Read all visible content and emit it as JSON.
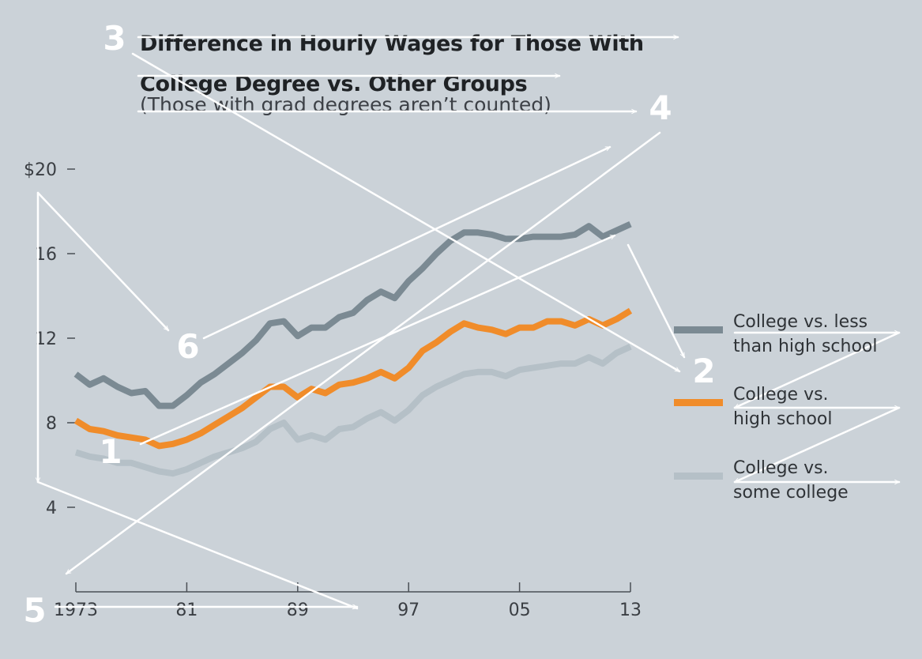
{
  "chart_data": {
    "type": "line",
    "title": "Difference in Hourly Wages for Those With College Degree vs. Other Groups",
    "title_lines": [
      "Difference in Hourly Wages for Those With",
      "College Degree vs. Other Groups"
    ],
    "subtitle": "(Those with grad degrees aren’t counted)",
    "ylim": [
      0,
      20
    ],
    "xlim": [
      1973,
      2013
    ],
    "y_ticks": [
      {
        "value": 20,
        "label": "$20"
      },
      {
        "value": 16,
        "label": "16"
      },
      {
        "value": 12,
        "label": "12"
      },
      {
        "value": 8,
        "label": "8"
      },
      {
        "value": 4,
        "label": "4"
      }
    ],
    "x_ticks": [
      {
        "value": 1973,
        "label": "1973"
      },
      {
        "value": 1981,
        "label": "81"
      },
      {
        "value": 1989,
        "label": "89"
      },
      {
        "value": 1997,
        "label": "97"
      },
      {
        "value": 2005,
        "label": "05"
      },
      {
        "value": 2013,
        "label": "13"
      }
    ],
    "x": [
      1973,
      1974,
      1975,
      1976,
      1977,
      1978,
      1979,
      1980,
      1981,
      1982,
      1983,
      1984,
      1985,
      1986,
      1987,
      1988,
      1989,
      1990,
      1991,
      1992,
      1993,
      1994,
      1995,
      1996,
      1997,
      1998,
      1999,
      2000,
      2001,
      2002,
      2003,
      2004,
      2005,
      2006,
      2007,
      2008,
      2009,
      2010,
      2011,
      2012,
      2013
    ],
    "series": [
      {
        "name": "College vs. less than high school",
        "legend_lines": [
          "College vs. less",
          "than high school"
        ],
        "color": "#7b8a93",
        "values": [
          10.3,
          9.8,
          10.1,
          9.7,
          9.4,
          9.5,
          8.8,
          8.8,
          9.3,
          9.9,
          10.3,
          10.8,
          11.3,
          11.9,
          12.7,
          12.8,
          12.1,
          12.5,
          12.5,
          13.0,
          13.2,
          13.8,
          14.2,
          13.9,
          14.7,
          15.3,
          16.0,
          16.6,
          17.0,
          17.0,
          16.9,
          16.7,
          16.7,
          16.8,
          16.8,
          16.8,
          16.9,
          17.3,
          16.8,
          17.1,
          17.4
        ]
      },
      {
        "name": "College vs. high school",
        "legend_lines": [
          "College vs.",
          "high school"
        ],
        "color": "#f08c2a",
        "values": [
          8.1,
          7.7,
          7.6,
          7.4,
          7.3,
          7.2,
          6.9,
          7.0,
          7.2,
          7.5,
          7.9,
          8.3,
          8.7,
          9.2,
          9.7,
          9.7,
          9.2,
          9.6,
          9.4,
          9.8,
          9.9,
          10.1,
          10.4,
          10.1,
          10.6,
          11.4,
          11.8,
          12.3,
          12.7,
          12.5,
          12.4,
          12.2,
          12.5,
          12.5,
          12.8,
          12.8,
          12.6,
          12.9,
          12.6,
          12.9,
          13.3
        ]
      },
      {
        "name": "College vs. some college",
        "legend_lines": [
          "College vs.",
          "some college"
        ],
        "color": "#b5c0c7",
        "values": [
          6.6,
          6.4,
          6.3,
          6.1,
          6.1,
          5.9,
          5.7,
          5.6,
          5.8,
          6.1,
          6.4,
          6.6,
          6.8,
          7.1,
          7.7,
          8.0,
          7.2,
          7.4,
          7.2,
          7.7,
          7.8,
          8.2,
          8.5,
          8.1,
          8.6,
          9.3,
          9.7,
          10.0,
          10.3,
          10.4,
          10.4,
          10.2,
          10.5,
          10.6,
          10.7,
          10.8,
          10.8,
          11.1,
          10.8,
          11.3,
          11.6
        ]
      }
    ],
    "annotations": [
      "1",
      "2",
      "3",
      "4",
      "5",
      "6"
    ],
    "grid": false
  }
}
